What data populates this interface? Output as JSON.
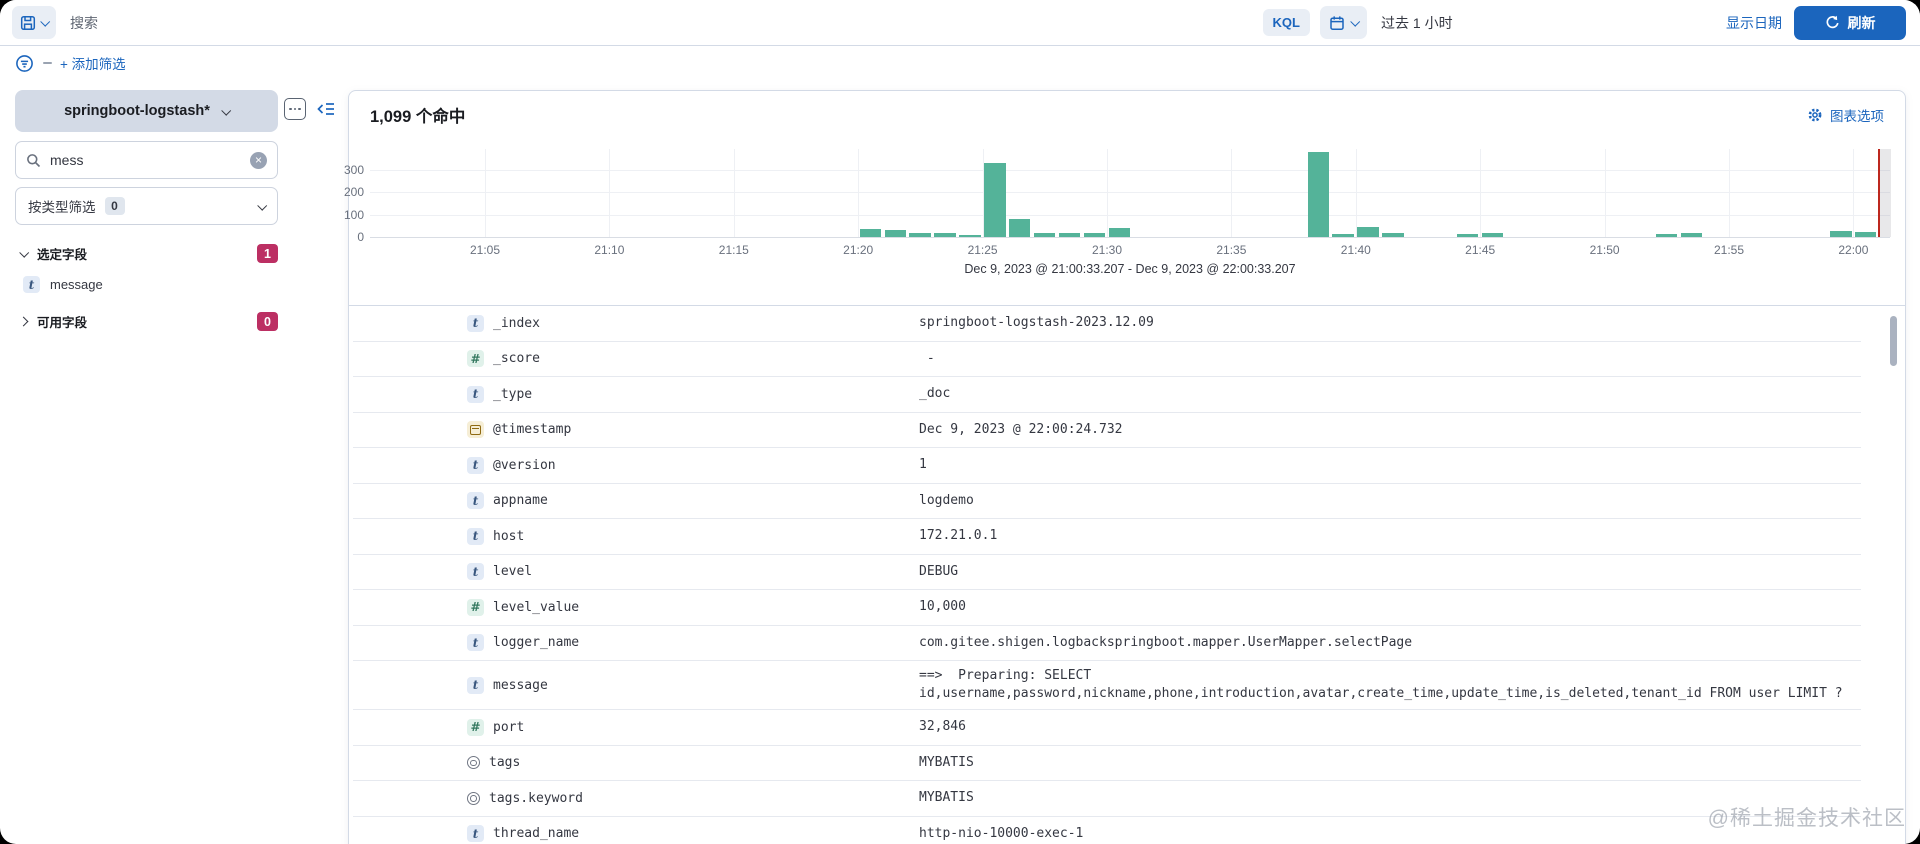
{
  "query_bar": {
    "search_placeholder": "搜索",
    "kql_label": "KQL",
    "time_range": "过去 1 小时",
    "show_dates_label": "显示日期",
    "refresh_label": "刷新",
    "add_filter_label": "+ 添加筛选"
  },
  "sidebar": {
    "index_pattern": "springboot-logstash*",
    "field_search_value": "mess",
    "filter_by_type_label": "按类型筛选",
    "filter_by_type_count": "0",
    "selected_fields_label": "选定字段",
    "selected_fields_count": "1",
    "selected_fields": [
      {
        "name": "message",
        "type_letter": "t"
      }
    ],
    "available_fields_label": "可用字段",
    "available_fields_count": "0"
  },
  "results": {
    "hits_text": "1,099 个命中",
    "chart_options_label": "图表选项"
  },
  "chart_data": {
    "type": "bar",
    "title": "",
    "caption": "Dec 9, 2023 @ 21:00:33.207 - Dec 9, 2023 @ 22:00:33.207",
    "x_domain": [
      "21:00:33",
      "22:00:33"
    ],
    "ylim": [
      0,
      400
    ],
    "yticks": [
      0,
      100,
      200,
      300
    ],
    "x_tick_labels": [
      "21:05",
      "21:10",
      "21:15",
      "21:20",
      "21:25",
      "21:30",
      "21:35",
      "21:40",
      "21:45",
      "21:50",
      "21:55",
      "22:00"
    ],
    "bar_interval": "1 minute",
    "grid": true,
    "legend": false,
    "buckets": [
      {
        "time": "21:20",
        "count": 35
      },
      {
        "time": "21:21",
        "count": 32
      },
      {
        "time": "21:22",
        "count": 18
      },
      {
        "time": "21:23",
        "count": 16
      },
      {
        "time": "21:24",
        "count": 10
      },
      {
        "time": "21:25",
        "count": 330
      },
      {
        "time": "21:26",
        "count": 80
      },
      {
        "time": "21:27",
        "count": 20
      },
      {
        "time": "21:28",
        "count": 20
      },
      {
        "time": "21:29",
        "count": 16
      },
      {
        "time": "21:30",
        "count": 40
      },
      {
        "time": "21:38",
        "count": 380
      },
      {
        "time": "21:39",
        "count": 12
      },
      {
        "time": "21:40",
        "count": 45
      },
      {
        "time": "21:41",
        "count": 18
      },
      {
        "time": "21:44",
        "count": 14
      },
      {
        "time": "21:45",
        "count": 20
      },
      {
        "time": "21:52",
        "count": 12
      },
      {
        "time": "21:53",
        "count": 20
      },
      {
        "time": "21:59",
        "count": 28
      },
      {
        "time": "22:00",
        "count": 22
      }
    ],
    "now_line_time": "22:01",
    "partial_bucket_shade": {
      "from": "22:01",
      "to": "22:01:30"
    },
    "bar_color": "#54b399",
    "now_line_color": "#bd271e"
  },
  "doc_table": {
    "rows": [
      {
        "field": "_index",
        "icon": "string-field-icon",
        "value": "springboot-logstash-2023.12.09"
      },
      {
        "field": "_score",
        "icon": "number-field-icon",
        "value": " -"
      },
      {
        "field": "_type",
        "icon": "string-field-icon",
        "value": "_doc"
      },
      {
        "field": "@timestamp",
        "icon": "calendar-field-icon",
        "value": "Dec 9, 2023 @ 22:00:24.732"
      },
      {
        "field": "@version",
        "icon": "string-field-icon",
        "value": "1"
      },
      {
        "field": "appname",
        "icon": "string-field-icon",
        "value": "logdemo"
      },
      {
        "field": "host",
        "icon": "string-field-icon",
        "value": "172.21.0.1"
      },
      {
        "field": "level",
        "icon": "string-field-icon",
        "value": "DEBUG"
      },
      {
        "field": "level_value",
        "icon": "number-field-icon",
        "value": "10,000"
      },
      {
        "field": "logger_name",
        "icon": "string-field-icon",
        "value": "com.gitee.shigen.logbackspringboot.mapper.UserMapper.selectPage"
      },
      {
        "field": "message",
        "icon": "string-field-icon",
        "value": "==>  Preparing: SELECT id,username,password,nickname,phone,introduction,avatar,create_time,update_time,is_deleted,tenant_id FROM user LIMIT ?"
      },
      {
        "field": "port",
        "icon": "number-field-icon",
        "value": "32,846"
      },
      {
        "field": "tags",
        "icon": "circle-field-icon",
        "value": "MYBATIS"
      },
      {
        "field": "tags.keyword",
        "icon": "circle-field-icon",
        "value": "MYBATIS"
      },
      {
        "field": "thread_name",
        "icon": "string-field-icon",
        "value": "http-nio-10000-exec-1"
      }
    ]
  },
  "watermark": "@稀土掘金技术社区",
  "colors": {
    "accent_blue": "#1b65bd",
    "bar_green": "#54b399",
    "now_line_red": "#bd271e",
    "count_badge_pink": "#bc2f63",
    "pill_gray": "#d3dae6"
  }
}
